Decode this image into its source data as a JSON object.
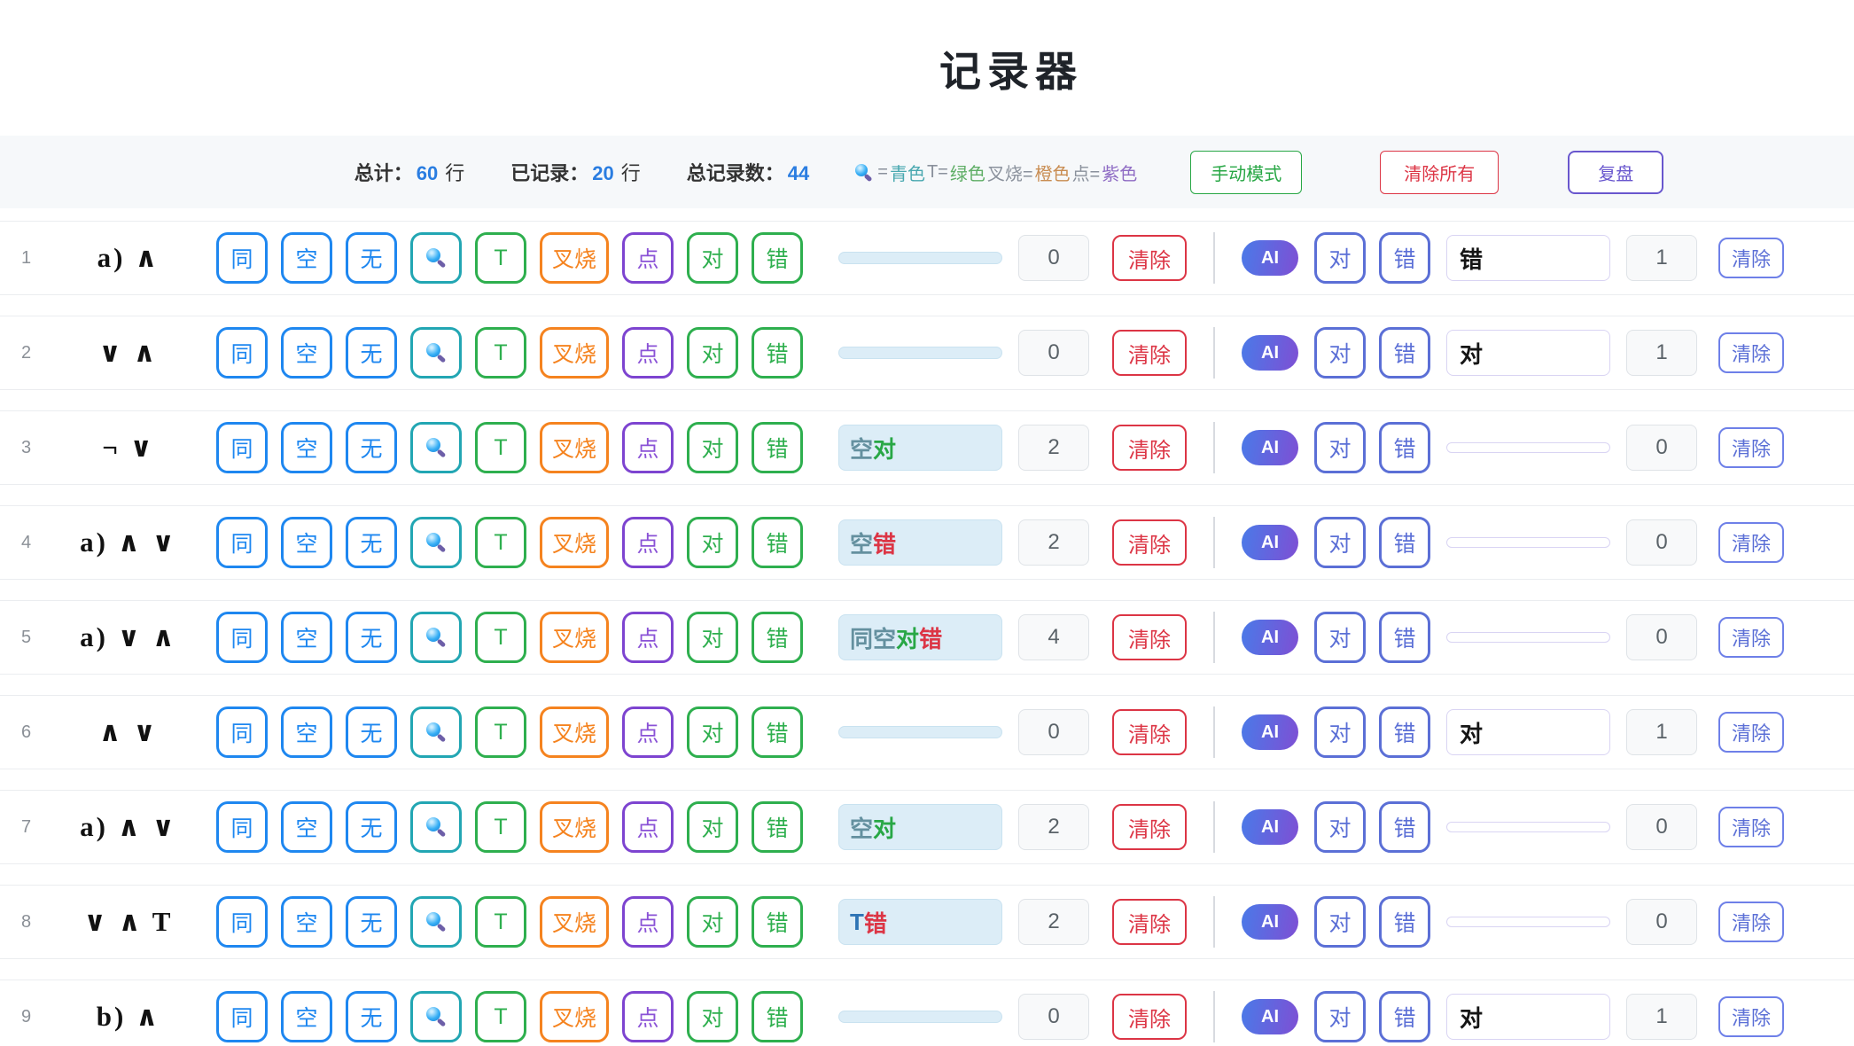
{
  "title": "记录器",
  "stats": {
    "total_label": "总计：",
    "total_value": "60",
    "total_unit": "行",
    "recorded_label": "已记录：",
    "recorded_value": "20",
    "recorded_unit": "行",
    "records_label": "总记录数：",
    "records_value": "44",
    "legend_parts": [
      {
        "pre": "=",
        "word": "青色",
        "color": "#49a8b0"
      },
      {
        "pre": " T=",
        "word": "绿色",
        "color": "#5fae66"
      },
      {
        "pre": " 叉烧=",
        "word": "橙色",
        "color": "#c98d52"
      },
      {
        "pre": " 点=",
        "word": "紫色",
        "color": "#8f6cc4"
      }
    ],
    "manual_mode_button": "手动模式",
    "clear_all_button": "清除所有",
    "replay_button": "复盘"
  },
  "row_buttons": [
    {
      "name": "same",
      "label": "同",
      "type": "blue"
    },
    {
      "name": "empty",
      "label": "空",
      "type": "blue"
    },
    {
      "name": "none",
      "label": "无",
      "type": "blue"
    },
    {
      "name": "magnifier",
      "label": "",
      "type": "teal",
      "icon": "magnifier-icon"
    },
    {
      "name": "t",
      "label": "T",
      "type": "green"
    },
    {
      "name": "chashao",
      "label": "叉烧",
      "type": "orange"
    },
    {
      "name": "dot",
      "label": "点",
      "type": "purple"
    },
    {
      "name": "correct",
      "label": "对",
      "type": "green"
    },
    {
      "name": "wrong",
      "label": "错",
      "type": "green"
    }
  ],
  "ai_badge": "AI",
  "ai_correct_label": "对",
  "ai_wrong_label": "错",
  "manual_clear_label": "清除",
  "ai_clear_label": "清除",
  "token_colors": {
    "同": "#64909f",
    "空": "#64909f",
    "无": "#64909f",
    "T": "#2e74b5",
    "对": "#28a745",
    "错": "#dc3545"
  },
  "colors": {
    "blue": "#1e87f0",
    "teal": "#22a6b3",
    "green": "#2eaf4e",
    "orange": "#f5831f",
    "purple": "#7d44d0",
    "red": "#dc3545",
    "indigo": "#5b6fd6",
    "stat_value_blue": "#2a7de1",
    "ai_gradient_start": "#4a7ae8",
    "ai_gradient_end": "#7e4fd4"
  },
  "rows": [
    {
      "num": "1",
      "label": "a) ∧",
      "left_tokens": [],
      "left_count": "0",
      "right_value": "错",
      "right_count": "1"
    },
    {
      "num": "2",
      "label": "∨ ∧",
      "left_tokens": [],
      "left_count": "0",
      "right_value": "对",
      "right_count": "1"
    },
    {
      "num": "3",
      "label": "¬ ∨",
      "left_tokens": [
        "空",
        "对"
      ],
      "left_count": "2",
      "right_value": "",
      "right_count": "0"
    },
    {
      "num": "4",
      "label": "a) ∧ ∨",
      "left_tokens": [
        "空",
        "错"
      ],
      "left_count": "2",
      "right_value": "",
      "right_count": "0"
    },
    {
      "num": "5",
      "label": "a) ∨ ∧",
      "left_tokens": [
        "同",
        "空",
        "对",
        "错"
      ],
      "left_count": "4",
      "right_value": "",
      "right_count": "0"
    },
    {
      "num": "6",
      "label": "∧ ∨",
      "left_tokens": [],
      "left_count": "0",
      "right_value": "对",
      "right_count": "1"
    },
    {
      "num": "7",
      "label": "a) ∧ ∨",
      "left_tokens": [
        "空",
        "对"
      ],
      "left_count": "2",
      "right_value": "",
      "right_count": "0"
    },
    {
      "num": "8",
      "label": "∨ ∧ T",
      "left_tokens": [
        "T",
        "错"
      ],
      "left_count": "2",
      "right_value": "",
      "right_count": "0"
    },
    {
      "num": "9",
      "label": "b) ∧",
      "left_tokens": [],
      "left_count": "0",
      "right_value": "对",
      "right_count": "1"
    }
  ]
}
